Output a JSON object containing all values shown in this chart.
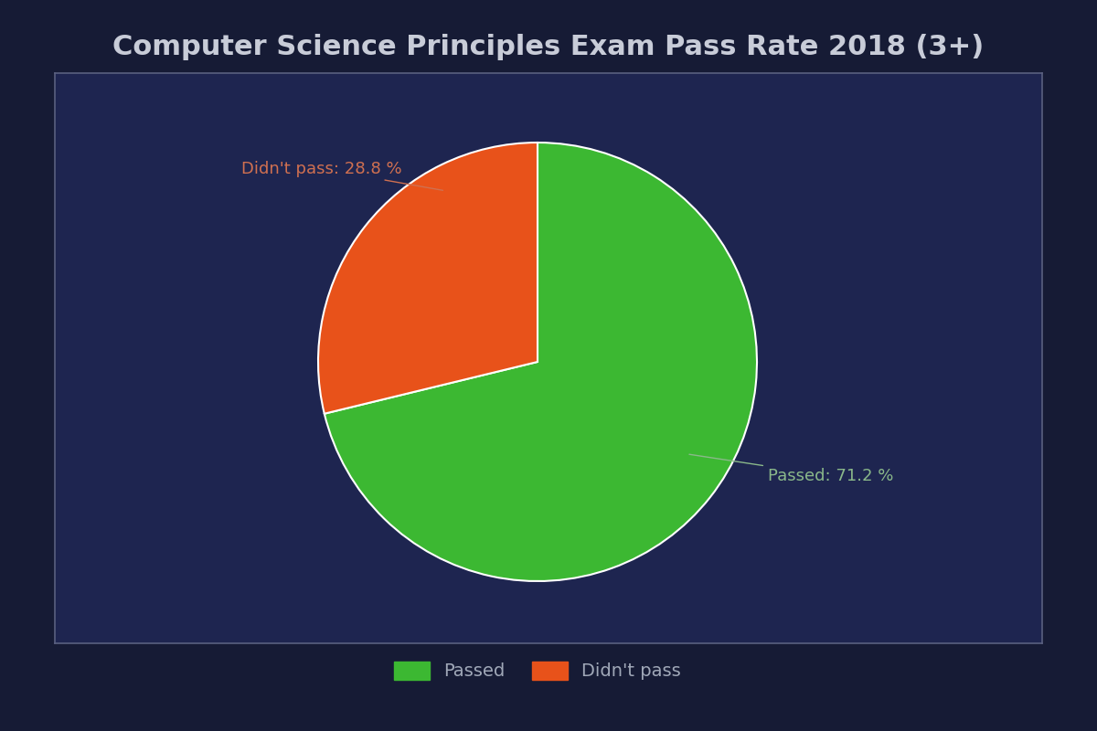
{
  "title": "Computer Science Principles Exam Pass Rate 2018 (3+)",
  "slices": [
    71.2,
    28.8
  ],
  "labels": [
    "Passed",
    "Didn't pass"
  ],
  "colors": [
    "#3cb832",
    "#e8521a"
  ],
  "wedge_edge_color": "white",
  "wedge_edge_width": 1.5,
  "label_passed": "Passed: 71.2 %",
  "label_didnt_pass": "Didn't pass: 28.8 %",
  "label_color_passed": "#8ab88a",
  "label_color_didnt_pass": "#d07050",
  "bg_outer": "#161b35",
  "bg_chart": "#1e2550",
  "title_color": "#c8ccd8",
  "legend_text_color": "#a0a8b8",
  "border_color": "#5a6080",
  "title_fontsize": 22,
  "annotation_fontsize": 13,
  "startangle": 90
}
